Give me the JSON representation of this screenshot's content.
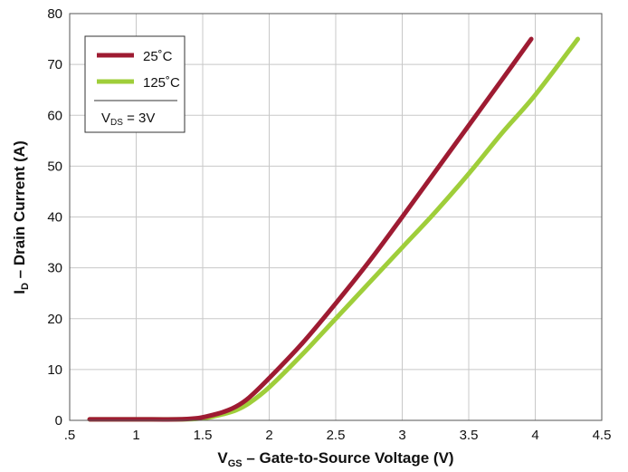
{
  "chart_data": {
    "type": "line",
    "xlabel": {
      "main": "V",
      "sub": "GS",
      "rest": " – Gate-to-Source Voltage (V)"
    },
    "ylabel": {
      "main": "I",
      "sub": "D",
      "rest": " – Drain Current (A)"
    },
    "xlim": [
      0.5,
      4.5
    ],
    "ylim": [
      0,
      80
    ],
    "x_ticks": [
      0.5,
      1,
      1.5,
      2,
      2.5,
      3,
      3.5,
      4,
      4.5
    ],
    "x_tick_labels": [
      ".5",
      "1",
      "1.5",
      "2",
      "2.5",
      "3",
      "3.5",
      "4",
      "4.5"
    ],
    "y_ticks": [
      0,
      10,
      20,
      30,
      40,
      50,
      60,
      70,
      80
    ],
    "y_tick_labels": [
      "0",
      "10",
      "20",
      "30",
      "40",
      "50",
      "60",
      "70",
      "80"
    ],
    "grid": true,
    "legend": {
      "placement": "top-left",
      "condition": {
        "main": "V",
        "sub": "DS",
        "rest": " = 3V"
      }
    },
    "series": [
      {
        "name": "25˚C",
        "color": "#9e1b32",
        "x": [
          0.65,
          1.0,
          1.3,
          1.45,
          1.55,
          1.65,
          1.75,
          1.85,
          2.0,
          2.25,
          2.5,
          2.75,
          3.0,
          3.25,
          3.5,
          3.75,
          3.97
        ],
        "y": [
          0.2,
          0.2,
          0.2,
          0.4,
          0.9,
          1.6,
          2.7,
          4.5,
          8.3,
          15.2,
          23.0,
          31.2,
          40.0,
          49.0,
          58.0,
          67.0,
          75.0
        ]
      },
      {
        "name": "125˚C",
        "color": "#9fce3a",
        "x": [
          0.65,
          1.0,
          1.3,
          1.45,
          1.55,
          1.65,
          1.75,
          1.85,
          2.0,
          2.25,
          2.5,
          2.75,
          3.0,
          3.25,
          3.5,
          3.75,
          4.0,
          4.32
        ],
        "y": [
          0.2,
          0.2,
          0.2,
          0.3,
          0.6,
          1.2,
          2.0,
          3.4,
          6.5,
          13.0,
          20.0,
          27.0,
          34.0,
          41.0,
          48.5,
          56.5,
          64.0,
          75.0
        ]
      }
    ]
  }
}
